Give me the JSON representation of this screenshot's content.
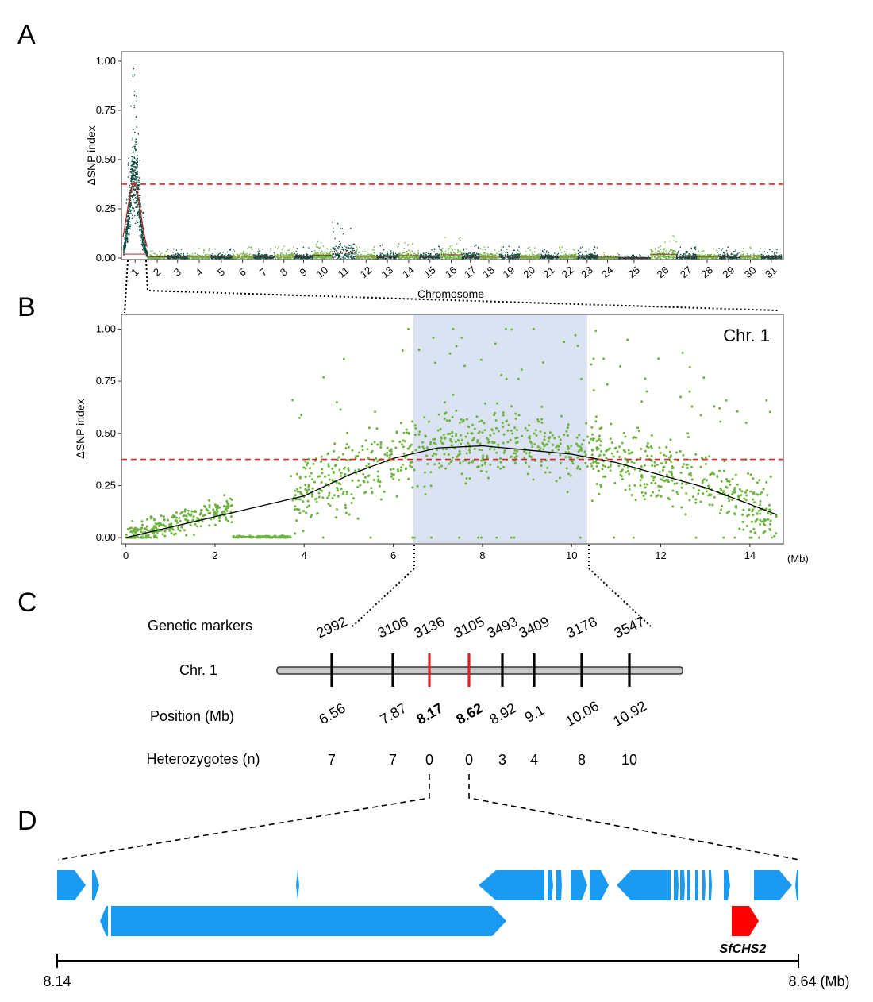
{
  "panels": {
    "a": "A",
    "b": "B",
    "c": "C",
    "d": "D"
  },
  "colors": {
    "dark": "#0d4d40",
    "light": "#6db33f",
    "threshold": "#e02020",
    "highlight": "#dbe3f2",
    "gene": "#1a9af0",
    "target_gene": "#ff0000"
  },
  "chart_data": [
    {
      "type": "scatter",
      "panel": "A",
      "ylabel": "ΔSNP index",
      "xlabel": "Chromosome",
      "ylim": [
        0,
        1.04
      ],
      "y_ticks": [
        "0.00",
        "0.25",
        "0.50",
        "0.75",
        "1.00"
      ],
      "threshold": 0.375,
      "chromosomes": [
        {
          "label": "1",
          "max": 1.0
        },
        {
          "label": "2",
          "max": 0.04
        },
        {
          "label": "3",
          "max": 0.05
        },
        {
          "label": "4",
          "max": 0.06
        },
        {
          "label": "5",
          "max": 0.05
        },
        {
          "label": "6",
          "max": 0.06
        },
        {
          "label": "7",
          "max": 0.05
        },
        {
          "label": "8",
          "max": 0.07
        },
        {
          "label": "9",
          "max": 0.06
        },
        {
          "label": "10",
          "max": 0.09
        },
        {
          "label": "11",
          "max": 0.2
        },
        {
          "label": "12",
          "max": 0.06
        },
        {
          "label": "13",
          "max": 0.07
        },
        {
          "label": "14",
          "max": 0.08
        },
        {
          "label": "15",
          "max": 0.07
        },
        {
          "label": "16",
          "max": 0.11
        },
        {
          "label": "17",
          "max": 0.07
        },
        {
          "label": "18",
          "max": 0.06
        },
        {
          "label": "19",
          "max": 0.07
        },
        {
          "label": "20",
          "max": 0.06
        },
        {
          "label": "21",
          "max": 0.05
        },
        {
          "label": "22",
          "max": 0.06
        },
        {
          "label": "23",
          "max": 0.06
        },
        {
          "label": "24",
          "max": 0.03
        },
        {
          "label": "25",
          "max": 0.02
        },
        {
          "label": "26",
          "max": 0.13
        },
        {
          "label": "27",
          "max": 0.06
        },
        {
          "label": "28",
          "max": 0.05
        },
        {
          "label": "29",
          "max": 0.06
        },
        {
          "label": "30",
          "max": 0.06
        },
        {
          "label": "31",
          "max": 0.05
        }
      ]
    },
    {
      "type": "scatter",
      "panel": "B",
      "title": "Chr. 1",
      "ylabel": "ΔSNP index",
      "xunit": "(Mb)",
      "xlim": [
        -0.1,
        14.75
      ],
      "ylim": [
        -0.03,
        1.07
      ],
      "x_ticks": [
        "0",
        "2",
        "4",
        "6",
        "8",
        "10",
        "12",
        "14"
      ],
      "y_ticks": [
        "0.00",
        "0.25",
        "0.50",
        "0.75",
        "1.00"
      ],
      "threshold": 0.375,
      "highlight_region": [
        6.45,
        10.35
      ],
      "fit_curve": [
        [
          0.0,
          0.0
        ],
        [
          1.0,
          0.05
        ],
        [
          2.0,
          0.1
        ],
        [
          3.0,
          0.15
        ],
        [
          4.0,
          0.2
        ],
        [
          5.0,
          0.3
        ],
        [
          6.0,
          0.38
        ],
        [
          7.0,
          0.43
        ],
        [
          8.0,
          0.44
        ],
        [
          9.0,
          0.42
        ],
        [
          10.0,
          0.4
        ],
        [
          11.0,
          0.36
        ],
        [
          12.0,
          0.3
        ],
        [
          13.0,
          0.24
        ],
        [
          14.0,
          0.16
        ],
        [
          14.6,
          0.11
        ]
      ]
    }
  ],
  "panel_c": {
    "row_labels": {
      "markers": "Genetic markers",
      "chr": "Chr. 1",
      "position": "Position (Mb)",
      "het": "Heterozygotes (n)"
    },
    "markers": [
      {
        "marker": "2992",
        "position": "6.56",
        "het": "7",
        "highlight": false
      },
      {
        "marker": "3106",
        "position": "7.87",
        "het": "7",
        "highlight": false
      },
      {
        "marker": "3136",
        "position": "8.17",
        "het": "0",
        "highlight": true
      },
      {
        "marker": "3105",
        "position": "8.62",
        "het": "0",
        "highlight": true
      },
      {
        "marker": "3493",
        "position": "8.92",
        "het": "3",
        "highlight": false
      },
      {
        "marker": "3409",
        "position": "9.1",
        "het": "4",
        "highlight": false
      },
      {
        "marker": "3178",
        "position": "10.06",
        "het": "8",
        "highlight": false
      },
      {
        "marker": "3547",
        "position": "10.92",
        "het": "10",
        "highlight": false
      }
    ]
  },
  "panel_d": {
    "range": [
      8.14,
      8.64
    ],
    "left_label": "8.14",
    "right_label": "8.64 (Mb)",
    "target_gene": "SfCHS2"
  }
}
